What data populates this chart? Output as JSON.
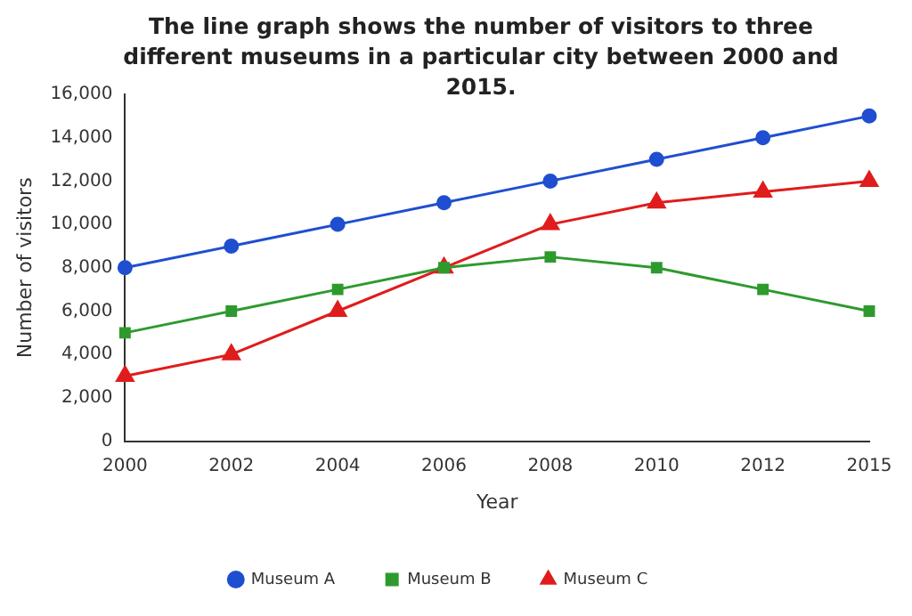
{
  "chart_data": {
    "type": "line",
    "title": "The line graph shows the number of visitors to three different museums in a particular city between 2000 and 2015.",
    "xlabel": "Year",
    "ylabel": "Number of visitors",
    "categories": [
      "2000",
      "2002",
      "2004",
      "2006",
      "2008",
      "2010",
      "2012",
      "2015"
    ],
    "series": [
      {
        "name": "Museum A",
        "color": "#1f4fd0",
        "marker": "circle",
        "values": [
          8000,
          9000,
          10000,
          11000,
          12000,
          13000,
          14000,
          15000
        ]
      },
      {
        "name": "Museum B",
        "color": "#2e9a2e",
        "marker": "square",
        "values": [
          5000,
          6000,
          7000,
          8000,
          8500,
          8000,
          7000,
          6000
        ]
      },
      {
        "name": "Museum C",
        "color": "#e01c1c",
        "marker": "triangle",
        "values": [
          3000,
          4000,
          6000,
          8000,
          10000,
          11000,
          11500,
          12000
        ]
      }
    ],
    "ylim": [
      0,
      16000
    ],
    "yticks": [
      0,
      {
        "value": 2000,
        "label": "2,000"
      },
      {
        "value": 4000,
        "label": "4,000"
      },
      {
        "value": 6000,
        "label": "6,000"
      },
      {
        "value": 8000,
        "label": "8,000"
      },
      {
        "value": 10000,
        "label": "10,000"
      },
      {
        "value": 12000,
        "label": "12,000"
      },
      {
        "value": 14000,
        "label": "14,000"
      },
      {
        "value": 16000,
        "label": "16,000"
      }
    ],
    "grid": false,
    "legend": "bottom",
    "line_style": "solid"
  }
}
